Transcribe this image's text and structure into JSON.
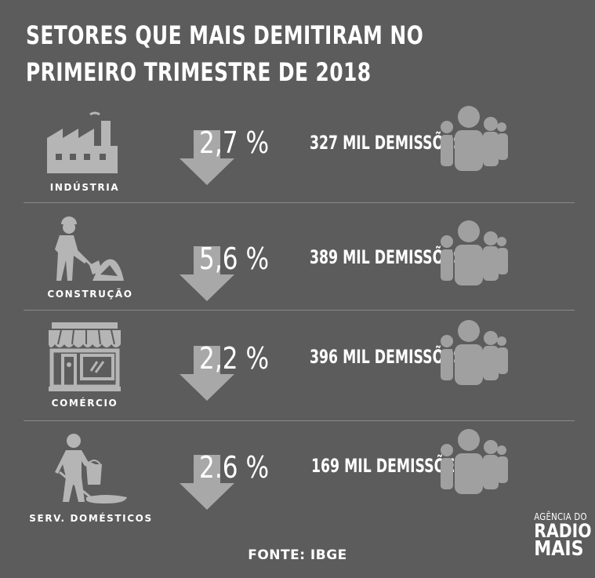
{
  "title": {
    "line1": "SETORES QUE MAIS DEMITIRAM NO",
    "line2": "PRIMEIRO TRIMESTRE DE 2018"
  },
  "sectors": [
    {
      "label": "INDÚSTRIA",
      "icon": "factory-icon",
      "percent": "2,7 %",
      "dismissals": "327 MIL DEMISSÕES"
    },
    {
      "label": "CONSTRUÇÃO",
      "icon": "construction-worker-icon",
      "percent": "5,6 %",
      "dismissals": "389 MIL DEMISSÕES"
    },
    {
      "label": "COMÉRCIO",
      "icon": "storefront-icon",
      "percent": "2,2 %",
      "dismissals": "396 MIL DEMISSÕES"
    },
    {
      "label": "SERV. DOMÉSTICOS",
      "icon": "cleaning-worker-icon",
      "percent": "2.6 %",
      "dismissals": "169 MIL DEMISSÕES"
    }
  ],
  "source": "FONTE: IBGE",
  "logo": {
    "line1": "AGÊNCIA DO",
    "line2": "RADIO",
    "line3": "MAIS"
  },
  "colors": {
    "background": "#5c5c5c",
    "icon": "#b5b5b5",
    "arrow": "#a8a8a8",
    "people": "#a0a0a0",
    "text": "#ffffff",
    "divider": "#8a8a8a"
  }
}
